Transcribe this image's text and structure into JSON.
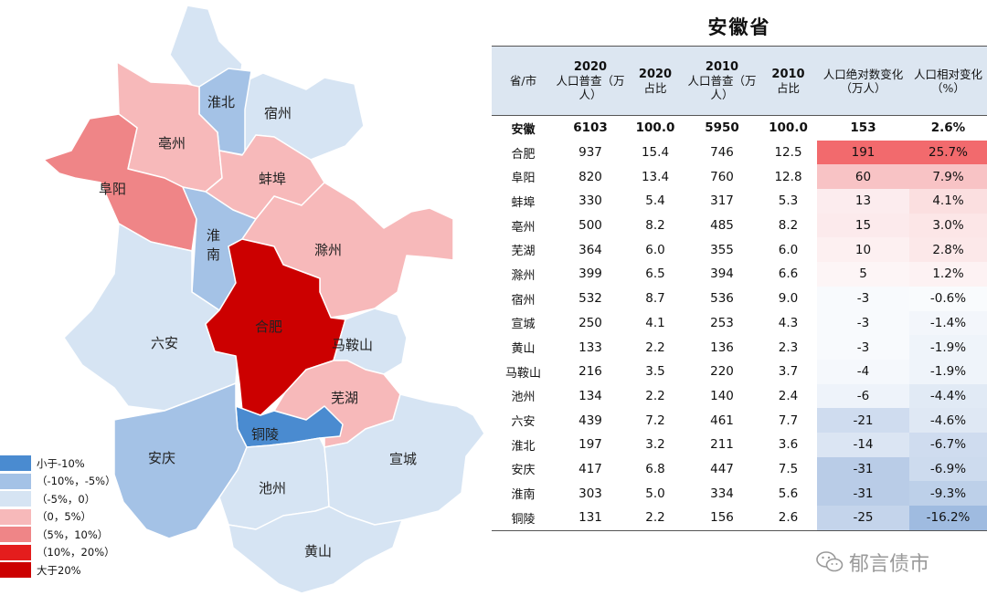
{
  "title": "安徽省",
  "legend": [
    {
      "label": "小于-10%",
      "color": "#4a8bd0"
    },
    {
      "label": "（-10%，-5%）",
      "color": "#a4c2e6"
    },
    {
      "label": "（-5%，0）",
      "color": "#d6e4f3"
    },
    {
      "label": "（0，5%）",
      "color": "#f7b9ba"
    },
    {
      "label": "（5%，10%）",
      "color": "#ef8587"
    },
    {
      "label": "（10%，20%）",
      "color": "#e41d1d"
    },
    {
      "label": "大于20%",
      "color": "#cc0000"
    }
  ],
  "map_regions": [
    {
      "name": "淮北",
      "color": "#a4c2e6"
    },
    {
      "name": "宿州",
      "color": "#d6e4f3"
    },
    {
      "name": "亳州",
      "color": "#f7b9ba"
    },
    {
      "name": "阜阳",
      "color": "#ef8587"
    },
    {
      "name": "蚌埠",
      "color": "#f7b9ba"
    },
    {
      "name": "淮南",
      "color": "#a4c2e6"
    },
    {
      "name": "滁州",
      "color": "#f7b9ba"
    },
    {
      "name": "合肥",
      "color": "#cc0000"
    },
    {
      "name": "六安",
      "color": "#d6e4f3"
    },
    {
      "name": "马鞍山",
      "color": "#d6e4f3"
    },
    {
      "name": "芜湖",
      "color": "#f7b9ba"
    },
    {
      "name": "铜陵",
      "color": "#4a8bd0"
    },
    {
      "name": "安庆",
      "color": "#a4c2e6"
    },
    {
      "name": "池州",
      "color": "#d6e4f3"
    },
    {
      "name": "宣城",
      "color": "#d6e4f3"
    },
    {
      "name": "黄山",
      "color": "#d6e4f3"
    }
  ],
  "chart_data": {
    "type": "table",
    "title": "安徽省",
    "columns": [
      {
        "line1": "",
        "line2": "省/市"
      },
      {
        "line1": "2020",
        "line2": "人口普查（万人）"
      },
      {
        "line1": "2020",
        "line2": "占比"
      },
      {
        "line1": "2010",
        "line2": "人口普查（万人）"
      },
      {
        "line1": "2010",
        "line2": "占比"
      },
      {
        "line1": "",
        "line2": "人口绝对数变化（万人）"
      },
      {
        "line1": "",
        "line2": "人口相对变化（%）"
      }
    ],
    "rows": [
      {
        "name": "安徽",
        "pop2020": "6103",
        "share2020": "100.0",
        "pop2010": "5950",
        "share2010": "100.0",
        "abs_change": "153",
        "rel_change": "2.6%",
        "abs_color": "#ffffff",
        "rel_color": "#ffffff"
      },
      {
        "name": "合肥",
        "pop2020": "937",
        "share2020": "15.4",
        "pop2010": "746",
        "share2010": "12.5",
        "abs_change": "191",
        "rel_change": "25.7%",
        "abs_color": "#f26a6d",
        "rel_color": "#f26a6d"
      },
      {
        "name": "阜阳",
        "pop2020": "820",
        "share2020": "13.4",
        "pop2010": "760",
        "share2010": "12.8",
        "abs_change": "60",
        "rel_change": "7.9%",
        "abs_color": "#f8c3c5",
        "rel_color": "#f8c3c5"
      },
      {
        "name": "蚌埠",
        "pop2020": "330",
        "share2020": "5.4",
        "pop2010": "317",
        "share2010": "5.3",
        "abs_change": "13",
        "rel_change": "4.1%",
        "abs_color": "#fcecee",
        "rel_color": "#fbdfe0"
      },
      {
        "name": "亳州",
        "pop2020": "500",
        "share2020": "8.2",
        "pop2010": "485",
        "share2010": "8.2",
        "abs_change": "15",
        "rel_change": "3.0%",
        "abs_color": "#fceaec",
        "rel_color": "#fce6e7"
      },
      {
        "name": "芜湖",
        "pop2020": "364",
        "share2020": "6.0",
        "pop2010": "355",
        "share2010": "6.0",
        "abs_change": "10",
        "rel_change": "2.8%",
        "abs_color": "#fdf0f1",
        "rel_color": "#fce8e9"
      },
      {
        "name": "滁州",
        "pop2020": "399",
        "share2020": "6.5",
        "pop2010": "394",
        "share2010": "6.6",
        "abs_change": "5",
        "rel_change": "1.2%",
        "abs_color": "#fdf5f6",
        "rel_color": "#fdf2f3"
      },
      {
        "name": "宿州",
        "pop2020": "532",
        "share2020": "8.7",
        "pop2010": "536",
        "share2010": "9.0",
        "abs_change": "-3",
        "rel_change": "-0.6%",
        "abs_color": "#f8fafd",
        "rel_color": "#f9fbfd"
      },
      {
        "name": "宣城",
        "pop2020": "250",
        "share2020": "4.1",
        "pop2010": "253",
        "share2010": "4.3",
        "abs_change": "-3",
        "rel_change": "-1.4%",
        "abs_color": "#f8fafd",
        "rel_color": "#f3f6fb"
      },
      {
        "name": "黄山",
        "pop2020": "133",
        "share2020": "2.2",
        "pop2010": "136",
        "share2010": "2.3",
        "abs_change": "-3",
        "rel_change": "-1.9%",
        "abs_color": "#f8fafd",
        "rel_color": "#eff4fa"
      },
      {
        "name": "马鞍山",
        "pop2020": "216",
        "share2020": "3.5",
        "pop2010": "220",
        "share2010": "3.7",
        "abs_change": "-4",
        "rel_change": "-1.9%",
        "abs_color": "#f5f8fc",
        "rel_color": "#eff4fa"
      },
      {
        "name": "池州",
        "pop2020": "134",
        "share2020": "2.2",
        "pop2010": "140",
        "share2010": "2.4",
        "abs_change": "-6",
        "rel_change": "-4.4%",
        "abs_color": "#eef3fa",
        "rel_color": "#e1eaf5"
      },
      {
        "name": "六安",
        "pop2020": "439",
        "share2020": "7.2",
        "pop2010": "461",
        "share2010": "7.7",
        "abs_change": "-21",
        "rel_change": "-4.6%",
        "abs_color": "#cfdcef",
        "rel_color": "#dfe8f4"
      },
      {
        "name": "淮北",
        "pop2020": "197",
        "share2020": "3.2",
        "pop2010": "211",
        "share2010": "3.6",
        "abs_change": "-14",
        "rel_change": "-6.7%",
        "abs_color": "#dbe5f3",
        "rel_color": "#cfdcef"
      },
      {
        "name": "安庆",
        "pop2020": "417",
        "share2020": "6.8",
        "pop2010": "447",
        "share2010": "7.5",
        "abs_change": "-31",
        "rel_change": "-6.9%",
        "abs_color": "#b9cce7",
        "rel_color": "#cddbee"
      },
      {
        "name": "淮南",
        "pop2020": "303",
        "share2020": "5.0",
        "pop2010": "334",
        "share2010": "5.6",
        "abs_change": "-31",
        "rel_change": "-9.3%",
        "abs_color": "#b9cce7",
        "rel_color": "#bdd0e9"
      },
      {
        "name": "铜陵",
        "pop2020": "131",
        "share2020": "2.2",
        "pop2010": "156",
        "share2010": "2.6",
        "abs_change": "-25",
        "rel_change": "-16.2%",
        "abs_color": "#c4d4eb",
        "rel_color": "#9fbbe0"
      }
    ]
  },
  "watermark": "郁言债市"
}
